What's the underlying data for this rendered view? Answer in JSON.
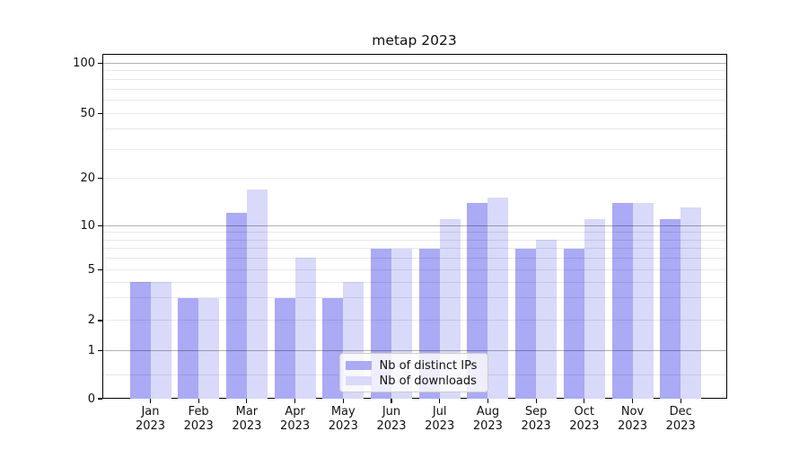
{
  "title": "metap 2023",
  "colors": {
    "bar_ips": "#aaaaf5",
    "bar_downloads": "#d9d9fa",
    "grid_major": "rgba(0,0,0,0.30)",
    "grid_minor": "rgba(0,0,0,0.09)",
    "axis": "#000000",
    "legend_border": "#cccccc"
  },
  "legend": {
    "items": [
      {
        "label": "Nb of distinct IPs",
        "color_key": "bar_ips"
      },
      {
        "label": "Nb of downloads",
        "color_key": "bar_downloads"
      }
    ]
  },
  "chart_data": {
    "type": "bar",
    "title": "metap 2023",
    "categories": [
      "Jan 2023",
      "Feb 2023",
      "Mar 2023",
      "Apr 2023",
      "May 2023",
      "Jun 2023",
      "Jul 2023",
      "Aug 2023",
      "Sep 2023",
      "Oct 2023",
      "Nov 2023",
      "Dec 2023"
    ],
    "x_labels": [
      {
        "month": "Jan",
        "year": "2023"
      },
      {
        "month": "Feb",
        "year": "2023"
      },
      {
        "month": "Mar",
        "year": "2023"
      },
      {
        "month": "Apr",
        "year": "2023"
      },
      {
        "month": "May",
        "year": "2023"
      },
      {
        "month": "Jun",
        "year": "2023"
      },
      {
        "month": "Jul",
        "year": "2023"
      },
      {
        "month": "Aug",
        "year": "2023"
      },
      {
        "month": "Sep",
        "year": "2023"
      },
      {
        "month": "Oct",
        "year": "2023"
      },
      {
        "month": "Nov",
        "year": "2023"
      },
      {
        "month": "Dec",
        "year": "2023"
      }
    ],
    "series": [
      {
        "name": "Nb of distinct IPs",
        "color_key": "bar_ips",
        "values": [
          4,
          3,
          12,
          3,
          3,
          7,
          7,
          14,
          7,
          7,
          14,
          11
        ]
      },
      {
        "name": "Nb of downloads",
        "color_key": "bar_downloads",
        "values": [
          4,
          3,
          17,
          6,
          4,
          7,
          11,
          15,
          8,
          11,
          14,
          13
        ]
      }
    ],
    "y_axis": {
      "scale": "log-like with linear segment below 1 (0 shown)",
      "ylim": [
        0,
        114
      ],
      "ticks": [
        {
          "label": "0",
          "value": 0,
          "pos": 0.0,
          "major": false
        },
        {
          "label": "1",
          "value": 1,
          "pos": 0.1398,
          "major": true
        },
        {
          "label": "2",
          "value": 2,
          "pos": 0.2266,
          "major": false
        },
        {
          "label": "5",
          "value": 5,
          "pos": 0.3742,
          "major": false
        },
        {
          "label": "10",
          "value": 10,
          "pos": 0.5018,
          "major": true
        },
        {
          "label": "20",
          "value": 20,
          "pos": 0.6398,
          "major": false
        },
        {
          "label": "50",
          "value": 50,
          "pos": 0.8273,
          "major": false
        },
        {
          "label": "100",
          "value": 100,
          "pos": 0.9732,
          "major": true
        }
      ],
      "minor_gridline_values": [
        0.5,
        3,
        4,
        6,
        7,
        8,
        9,
        30,
        40,
        60,
        70,
        80,
        90
      ]
    },
    "legend_position": "lower center-left inside axes",
    "grid": "horizontal major+minor, drawn over bars"
  }
}
